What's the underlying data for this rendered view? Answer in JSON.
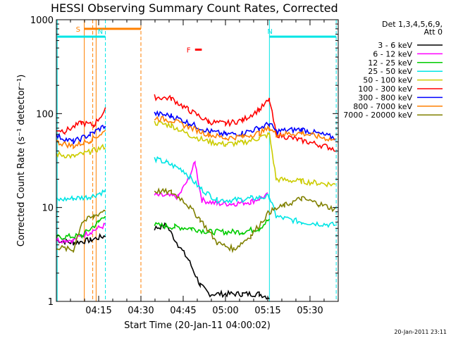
{
  "chart_data": {
    "type": "line",
    "title": "HESSI Observing Summary Count Rates, Corrected",
    "xlabel": "Start Time (20-Jan-11 04:00:02)",
    "ylabel": "Corrected Count Rate (s⁻¹ detector⁻¹)",
    "y_scale": "log",
    "ylim": [
      1,
      1000
    ],
    "xlim_minutes": [
      4.0,
      5.667
    ],
    "x_tick_labels": [
      "04:15",
      "04:30",
      "04:45",
      "05:00",
      "05:15",
      "05:30"
    ],
    "x_ticks_minutes": [
      4.25,
      4.5,
      4.75,
      5.0,
      5.25,
      5.5
    ],
    "y_tick_labels": [
      "1",
      "10",
      "100",
      "1000"
    ],
    "y_ticks": [
      1,
      10,
      100,
      1000
    ],
    "legend_header": [
      "Det 1,3,4,5,6,9,",
      "Att 0"
    ],
    "series": [
      {
        "name": "3 - 6 keV",
        "color": "#000000",
        "points": [
          [
            4.0,
            4.5
          ],
          [
            4.1,
            4.2
          ],
          [
            4.2,
            4.5
          ],
          [
            4.29,
            5.0
          ],
          [
            4.58,
            6.0
          ],
          [
            4.65,
            6.5
          ],
          [
            4.72,
            4.0
          ],
          [
            4.78,
            2.8
          ],
          [
            4.85,
            1.5
          ],
          [
            4.9,
            1.2
          ],
          [
            5.0,
            1.2
          ],
          [
            5.1,
            1.2
          ],
          [
            5.2,
            1.2
          ],
          [
            5.26,
            1.1
          ]
        ],
        "gaps_after_x": [
          4.29
        ]
      },
      {
        "name": "6 - 12 keV",
        "color": "#ff00ff",
        "points": [
          [
            4.0,
            4.5
          ],
          [
            4.1,
            4.5
          ],
          [
            4.2,
            5.5
          ],
          [
            4.29,
            6.5
          ],
          [
            4.58,
            13.5
          ],
          [
            4.72,
            13.0
          ],
          [
            4.78,
            20.0
          ],
          [
            4.82,
            30.0
          ],
          [
            4.86,
            12.0
          ],
          [
            4.95,
            11.0
          ],
          [
            5.05,
            11.0
          ],
          [
            5.15,
            11.5
          ],
          [
            5.25,
            13.5
          ]
        ],
        "gaps_after_x": [
          4.29
        ]
      },
      {
        "name": "12 - 25 keV",
        "color": "#00cc00",
        "points": [
          [
            4.0,
            4.8
          ],
          [
            4.15,
            5.0
          ],
          [
            4.25,
            7.0
          ],
          [
            4.29,
            8.5
          ],
          [
            4.58,
            6.5
          ],
          [
            4.7,
            6.2
          ],
          [
            4.8,
            6.0
          ],
          [
            4.9,
            5.5
          ],
          [
            5.0,
            5.5
          ],
          [
            5.1,
            5.5
          ],
          [
            5.2,
            6.0
          ],
          [
            5.26,
            7.5
          ]
        ],
        "gaps_after_x": [
          4.29
        ]
      },
      {
        "name": "25 - 50 keV",
        "color": "#00e5e5",
        "points": [
          [
            4.0,
            12.0
          ],
          [
            4.1,
            12.5
          ],
          [
            4.2,
            13.0
          ],
          [
            4.29,
            15.0
          ],
          [
            4.58,
            33.0
          ],
          [
            4.65,
            30.0
          ],
          [
            4.75,
            25.0
          ],
          [
            4.85,
            16.0
          ],
          [
            4.95,
            12.0
          ],
          [
            5.05,
            12.0
          ],
          [
            5.15,
            12.5
          ],
          [
            5.26,
            13.0
          ],
          [
            5.3,
            8.0
          ],
          [
            5.45,
            7.0
          ],
          [
            5.65,
            6.5
          ]
        ],
        "gaps_after_x": [
          4.29
        ]
      },
      {
        "name": "50 - 100 keV",
        "color": "#cccc00",
        "points": [
          [
            4.0,
            37.0
          ],
          [
            4.1,
            35.0
          ],
          [
            4.2,
            39.0
          ],
          [
            4.29,
            45.0
          ],
          [
            4.58,
            80.0
          ],
          [
            4.68,
            75.0
          ],
          [
            4.78,
            60.0
          ],
          [
            4.9,
            50.0
          ],
          [
            5.0,
            47.0
          ],
          [
            5.1,
            49.0
          ],
          [
            5.2,
            55.0
          ],
          [
            5.26,
            60.0
          ],
          [
            5.3,
            20.0
          ],
          [
            5.45,
            19.0
          ],
          [
            5.65,
            17.5
          ]
        ],
        "gaps_after_x": [
          4.29
        ]
      },
      {
        "name": "100 - 300 keV",
        "color": "#ff0000",
        "points": [
          [
            4.0,
            68.0
          ],
          [
            4.05,
            65.0
          ],
          [
            4.15,
            80.0
          ],
          [
            4.22,
            75.0
          ],
          [
            4.29,
            110.0
          ],
          [
            4.58,
            150.0
          ],
          [
            4.68,
            145.0
          ],
          [
            4.78,
            110.0
          ],
          [
            4.9,
            82.0
          ],
          [
            5.0,
            78.0
          ],
          [
            5.1,
            85.0
          ],
          [
            5.2,
            110.0
          ],
          [
            5.26,
            140.0
          ],
          [
            5.3,
            60.0
          ],
          [
            5.45,
            52.0
          ],
          [
            5.65,
            42.0
          ]
        ],
        "gaps_after_x": [
          4.29
        ]
      },
      {
        "name": "300 - 800 keV",
        "color": "#0000ff",
        "points": [
          [
            4.0,
            58.0
          ],
          [
            4.1,
            50.0
          ],
          [
            4.2,
            60.0
          ],
          [
            4.29,
            75.0
          ],
          [
            4.58,
            100.0
          ],
          [
            4.68,
            95.0
          ],
          [
            4.78,
            80.0
          ],
          [
            4.9,
            65.0
          ],
          [
            5.0,
            60.0
          ],
          [
            5.1,
            62.0
          ],
          [
            5.2,
            70.0
          ],
          [
            5.26,
            78.0
          ],
          [
            5.3,
            65.0
          ],
          [
            5.45,
            68.0
          ],
          [
            5.65,
            55.0
          ]
        ],
        "gaps_after_x": [
          4.29
        ]
      },
      {
        "name": "800 - 7000 keV",
        "color": "#ff8000",
        "points": [
          [
            4.0,
            50.0
          ],
          [
            4.1,
            45.0
          ],
          [
            4.2,
            52.0
          ],
          [
            4.29,
            65.0
          ],
          [
            4.58,
            90.0
          ],
          [
            4.68,
            85.0
          ],
          [
            4.78,
            72.0
          ],
          [
            4.9,
            60.0
          ],
          [
            5.0,
            55.0
          ],
          [
            5.1,
            57.0
          ],
          [
            5.2,
            62.0
          ],
          [
            5.26,
            70.0
          ],
          [
            5.3,
            60.0
          ],
          [
            5.45,
            62.0
          ],
          [
            5.65,
            52.0
          ]
        ],
        "gaps_after_x": [
          4.29
        ]
      },
      {
        "name": "7000 - 20000 keV",
        "color": "#808000",
        "points": [
          [
            4.0,
            3.8
          ],
          [
            4.1,
            3.5
          ],
          [
            4.15,
            7.0
          ],
          [
            4.22,
            8.0
          ],
          [
            4.29,
            9.5
          ],
          [
            4.58,
            15.0
          ],
          [
            4.68,
            14.5
          ],
          [
            4.75,
            12.0
          ],
          [
            4.85,
            7.5
          ],
          [
            4.95,
            4.2
          ],
          [
            5.05,
            3.6
          ],
          [
            5.15,
            5.0
          ],
          [
            5.26,
            9.0
          ],
          [
            5.35,
            10.5
          ],
          [
            5.45,
            12.5
          ],
          [
            5.55,
            11.0
          ],
          [
            5.65,
            9.5
          ]
        ],
        "gaps_after_x": [
          4.29
        ]
      }
    ],
    "vertical_markers": [
      {
        "x": 4.005,
        "color": "#00e5e5",
        "style": "solid"
      },
      {
        "x": 4.165,
        "color": "#ff8000",
        "style": "solid"
      },
      {
        "x": 4.215,
        "color": "#ff8000",
        "style": "dashed"
      },
      {
        "x": 4.235,
        "color": "#ff8000",
        "style": "solid"
      },
      {
        "x": 4.29,
        "color": "#00e5e5",
        "style": "dashed"
      },
      {
        "x": 4.5,
        "color": "#ff8000",
        "style": "dashed"
      },
      {
        "x": 5.26,
        "color": "#00e5e5",
        "style": "solid"
      },
      {
        "x": 5.655,
        "color": "#00e5e5",
        "style": "dashed"
      }
    ],
    "flag_bars": [
      {
        "label": "S",
        "color": "#ff8000",
        "x_start": 4.165,
        "x_end": 4.5,
        "y": 800
      },
      {
        "label": "N",
        "color": "#00e5e5",
        "x_start": 4.005,
        "x_end": 4.29,
        "y": 660
      },
      {
        "label": "N",
        "color": "#00e5e5",
        "x_start": 5.26,
        "x_end": 5.655,
        "y": 660
      },
      {
        "label": "F",
        "color": "#ff0000",
        "x_start": 4.82,
        "x_end": 4.86,
        "y": 480
      }
    ]
  },
  "footer": {
    "timestamp": "20-Jan-2011 23:11"
  }
}
